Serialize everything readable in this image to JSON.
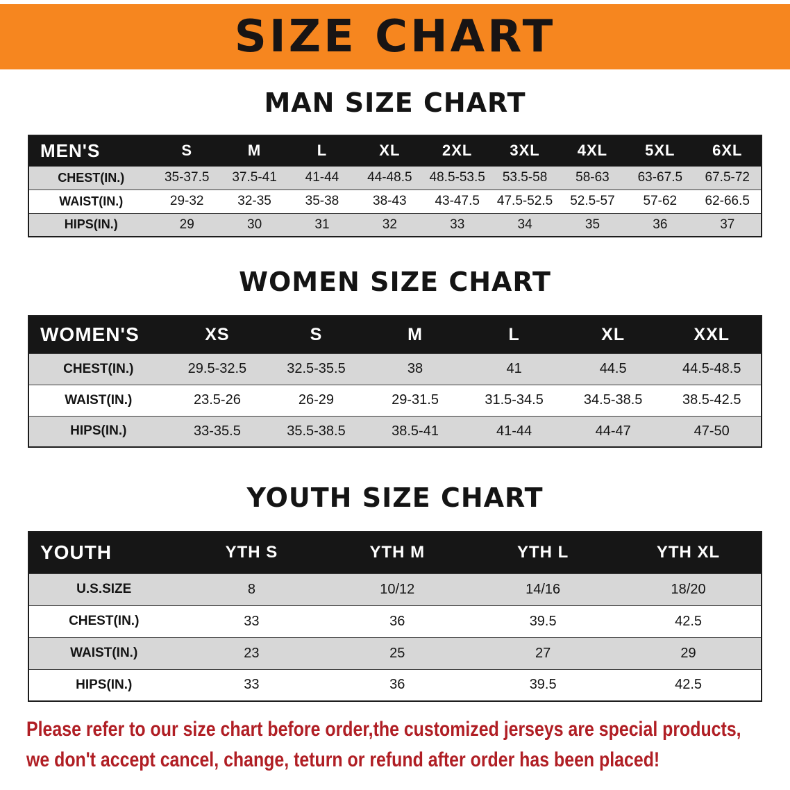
{
  "banner": {
    "title": "SIZE CHART"
  },
  "colors": {
    "banner_bg": "#f6861f",
    "table_header_bg": "#161616",
    "row_stripe": "#d7d7d7",
    "footer_text": "#b01e24"
  },
  "sections": [
    {
      "heading": "MAN SIZE CHART",
      "table": {
        "header": [
          "MEN'S",
          "S",
          "M",
          "L",
          "XL",
          "2XL",
          "3XL",
          "4XL",
          "5XL",
          "6XL"
        ],
        "rows": [
          [
            "CHEST(IN.)",
            "35-37.5",
            "37.5-41",
            "41-44",
            "44-48.5",
            "48.5-53.5",
            "53.5-58",
            "58-63",
            "63-67.5",
            "67.5-72"
          ],
          [
            "WAIST(IN.)",
            "29-32",
            "32-35",
            "35-38",
            "38-43",
            "43-47.5",
            "47.5-52.5",
            "52.5-57",
            "57-62",
            "62-66.5"
          ],
          [
            "HIPS(IN.)",
            "29",
            "30",
            "31",
            "32",
            "33",
            "34",
            "35",
            "36",
            "37"
          ]
        ]
      }
    },
    {
      "heading": "WOMEN SIZE CHART",
      "table": {
        "header": [
          "WOMEN'S",
          "XS",
          "S",
          "M",
          "L",
          "XL",
          "XXL"
        ],
        "rows": [
          [
            "CHEST(IN.)",
            "29.5-32.5",
            "32.5-35.5",
            "38",
            "41",
            "44.5",
            "44.5-48.5"
          ],
          [
            "WAIST(IN.)",
            "23.5-26",
            "26-29",
            "29-31.5",
            "31.5-34.5",
            "34.5-38.5",
            "38.5-42.5"
          ],
          [
            "HIPS(IN.)",
            "33-35.5",
            "35.5-38.5",
            "38.5-41",
            "41-44",
            "44-47",
            "47-50"
          ]
        ]
      }
    },
    {
      "heading": "YOUTH SIZE CHART",
      "table": {
        "header": [
          "YOUTH",
          "YTH S",
          "YTH M",
          "YTH L",
          "YTH XL"
        ],
        "rows": [
          [
            "U.S.SIZE",
            "8",
            "10/12",
            "14/16",
            "18/20"
          ],
          [
            "CHEST(IN.)",
            "33",
            "36",
            "39.5",
            "42.5"
          ],
          [
            "WAIST(IN.)",
            "23",
            "25",
            "27",
            "29"
          ],
          [
            "HIPS(IN.)",
            "33",
            "36",
            "39.5",
            "42.5"
          ]
        ]
      }
    }
  ],
  "footer": {
    "line1": "Please refer to our size chart before order,the customized jerseys are special products,",
    "line2": "we don't accept cancel, change, teturn or refund after order has been placed!"
  }
}
